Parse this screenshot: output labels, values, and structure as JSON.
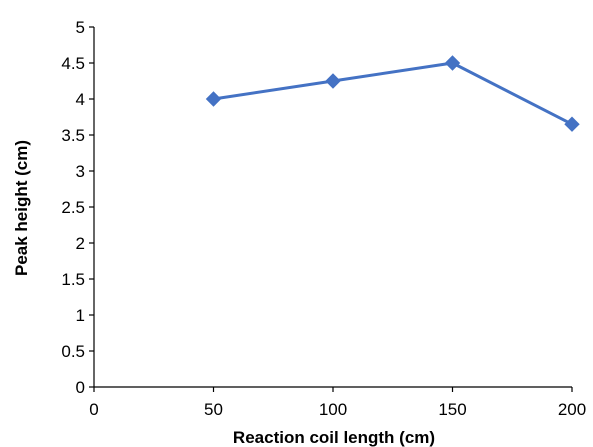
{
  "chart_data": {
    "type": "line",
    "title": "",
    "xlabel": "Reaction coil length (cm)",
    "ylabel": "Peak height (cm)",
    "xlim": [
      0,
      200
    ],
    "ylim": [
      0,
      5
    ],
    "xticks": [
      "0",
      "50",
      "100",
      "150",
      "200"
    ],
    "yticks": [
      "0",
      "0.5",
      "1",
      "1.5",
      "2",
      "2.5",
      "3",
      "3.5",
      "4",
      "4.5",
      "5"
    ],
    "grid": false,
    "legend": "none",
    "series": [
      {
        "color": "#4472C4",
        "marker": "diamond",
        "x": [
          50,
          100,
          150,
          200
        ],
        "y": [
          4.0,
          4.25,
          4.5,
          3.65
        ]
      }
    ]
  }
}
